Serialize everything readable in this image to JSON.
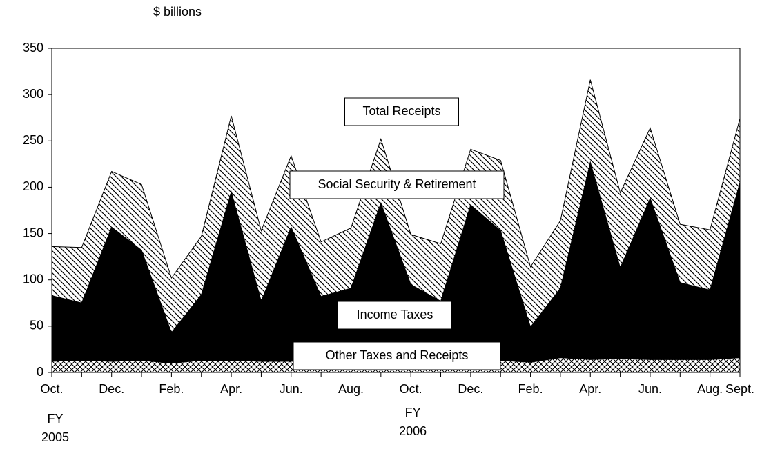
{
  "chart_data": {
    "type": "stacked_area",
    "y_label": "$ billions",
    "annotation": "Total Receipts",
    "fy_labels": [
      [
        "FY",
        "2005"
      ],
      [
        "FY",
        "2006"
      ]
    ],
    "categories": [
      "Oct.",
      null,
      "Dec.",
      null,
      "Feb.",
      null,
      "Apr.",
      null,
      "Jun.",
      null,
      "Aug.",
      null,
      "Oct.",
      null,
      "Dec.",
      null,
      "Feb.",
      null,
      "Apr.",
      null,
      "Jun.",
      null,
      "Aug.",
      "Sept."
    ],
    "series": [
      {
        "name": "Other Taxes and Receipts",
        "color": "#000000",
        "pattern": "crosshatch",
        "values": [
          12,
          13,
          12,
          13,
          10,
          13,
          13,
          12,
          12,
          13,
          13,
          12,
          13,
          13,
          13,
          13,
          11,
          16,
          14,
          15,
          14,
          14,
          14,
          16
        ]
      },
      {
        "name": "Income Taxes",
        "color": "#000000",
        "pattern": "solid",
        "values": [
          71,
          62,
          145,
          119,
          33,
          71,
          182,
          65,
          145,
          69,
          78,
          171,
          82,
          64,
          168,
          140,
          38,
          75,
          213,
          98,
          174,
          83,
          75,
          189
        ]
      },
      {
        "name": "Social Security & Retirement",
        "color": "#000000",
        "pattern": "diagonal",
        "values": [
          53,
          60,
          60,
          71,
          59,
          63,
          82,
          76,
          77,
          59,
          65,
          69,
          54,
          62,
          60,
          76,
          65,
          73,
          89,
          81,
          76,
          63,
          65,
          69
        ]
      }
    ],
    "ylim": [
      0,
      350
    ],
    "yticks": [
      0,
      50,
      100,
      150,
      200,
      250,
      300,
      350
    ]
  }
}
